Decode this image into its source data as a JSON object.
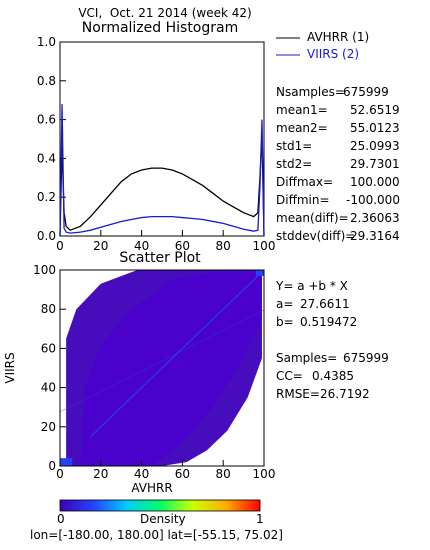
{
  "title": "VCI,  Oct. 21 2014 (week 42)",
  "legend": [
    {
      "label": "AVHRR (1)",
      "color": "#000000"
    },
    {
      "label": "VIIRS (2)",
      "color": "#1a1acc"
    }
  ],
  "stats": [
    {
      "label": "Nsamples=",
      "value": "675999"
    },
    {
      "label": "mean1=",
      "value": "52.6519"
    },
    {
      "label": "mean2=",
      "value": "55.0123"
    },
    {
      "label": "std1=",
      "value": "25.0993"
    },
    {
      "label": "std2=",
      "value": "29.7301"
    },
    {
      "label": "Diffmax=",
      "value": "100.000"
    },
    {
      "label": "Diffmin=",
      "value": "-100.000"
    },
    {
      "label": "mean(diff)=",
      "value": "2.36063"
    },
    {
      "label": "stddev(diff)=",
      "value": "29.3164"
    }
  ],
  "regression": {
    "equation": "Y= a +b * X",
    "a_label": "a=",
    "a_value": "27.6611",
    "b_label": "b=",
    "b_value": "0.519472",
    "samples_label": "Samples=",
    "samples_value": "675999",
    "cc_label": "CC=",
    "cc_value": "0.4385",
    "rmse_label": "RMSE=",
    "rmse_value": "26.7192"
  },
  "colorbar": {
    "min_label": "0",
    "max_label": "1",
    "label": "Density"
  },
  "footer": "lon=[-180.00, 180.00] lat=[-55.15, 75.02]",
  "chart_data": [
    {
      "type": "line",
      "title": "Normalized Histogram",
      "xlim": [
        0,
        100
      ],
      "ylim": [
        0,
        1
      ],
      "xticks": [
        "0",
        "20",
        "40",
        "60",
        "80",
        "100"
      ],
      "yticks": [
        "0.0",
        "0.2",
        "0.4",
        "0.6",
        "0.8",
        "1.0"
      ],
      "x": [
        0,
        1,
        2,
        3,
        5,
        10,
        15,
        20,
        25,
        30,
        35,
        40,
        45,
        50,
        55,
        60,
        65,
        70,
        75,
        80,
        85,
        90,
        95,
        97,
        98,
        99,
        100
      ],
      "series": [
        {
          "name": "AVHRR (1)",
          "color": "#000000",
          "values": [
            0.0,
            0.46,
            0.12,
            0.05,
            0.03,
            0.05,
            0.1,
            0.16,
            0.22,
            0.28,
            0.32,
            0.34,
            0.35,
            0.35,
            0.34,
            0.32,
            0.29,
            0.26,
            0.22,
            0.18,
            0.15,
            0.12,
            0.1,
            0.12,
            0.3,
            0.52,
            0.0
          ]
        },
        {
          "name": "VIIRS (2)",
          "color": "#1a1acc",
          "values": [
            0.0,
            0.68,
            0.04,
            0.02,
            0.015,
            0.02,
            0.03,
            0.045,
            0.06,
            0.075,
            0.085,
            0.095,
            0.1,
            0.1,
            0.1,
            0.095,
            0.09,
            0.085,
            0.075,
            0.065,
            0.05,
            0.035,
            0.025,
            0.03,
            0.25,
            0.6,
            0.0
          ]
        }
      ]
    },
    {
      "type": "heatmap",
      "title": "Scatter Plot",
      "xlabel": "AVHRR",
      "ylabel": "VIIRS",
      "xlim": [
        0,
        100
      ],
      "ylim": [
        0,
        100
      ],
      "xticks": [
        "0",
        "20",
        "40",
        "60",
        "80",
        "100"
      ],
      "yticks": [
        "0",
        "20",
        "40",
        "60",
        "80",
        "100"
      ],
      "fit": {
        "a": 27.6611,
        "b": 0.519472
      },
      "colorscale": [
        "#3d00b8",
        "#2244ff",
        "#00ccff",
        "#00ff66",
        "#ccff00",
        "#ffaa00",
        "#ff0000"
      ]
    }
  ]
}
